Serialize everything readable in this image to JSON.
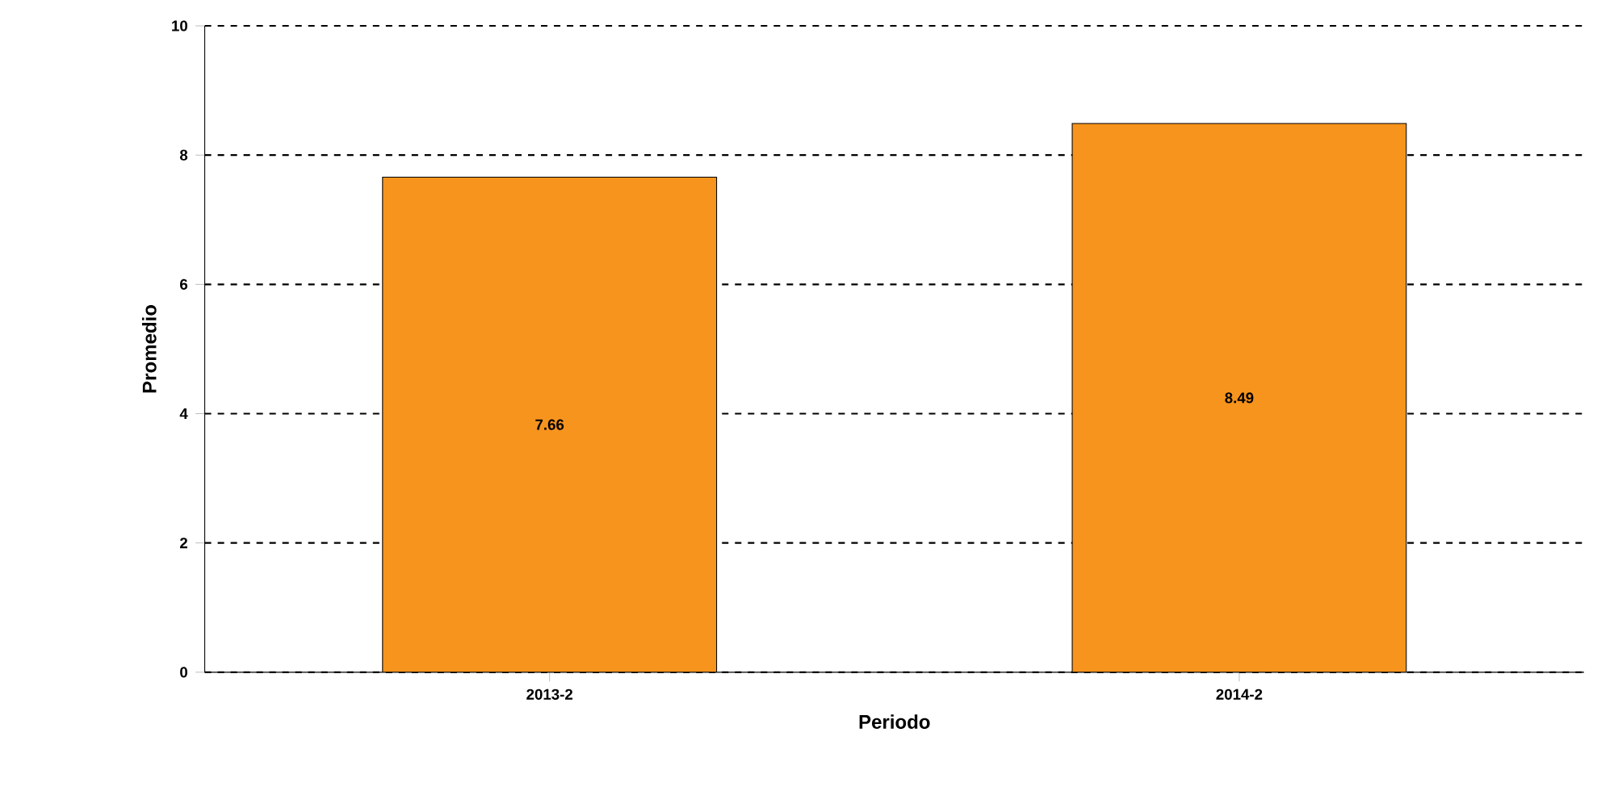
{
  "chart_data": {
    "type": "bar",
    "xlabel": "Periodo",
    "ylabel": "Promedio",
    "categories": [
      "2013-2",
      "2014-2"
    ],
    "values": [
      7.66,
      8.49
    ],
    "value_labels": [
      "7.66",
      "8.49"
    ],
    "color": "#f7941d",
    "ylim": [
      0,
      10
    ],
    "yticks": [
      0,
      2,
      4,
      6,
      8,
      10
    ],
    "grid": "y"
  }
}
